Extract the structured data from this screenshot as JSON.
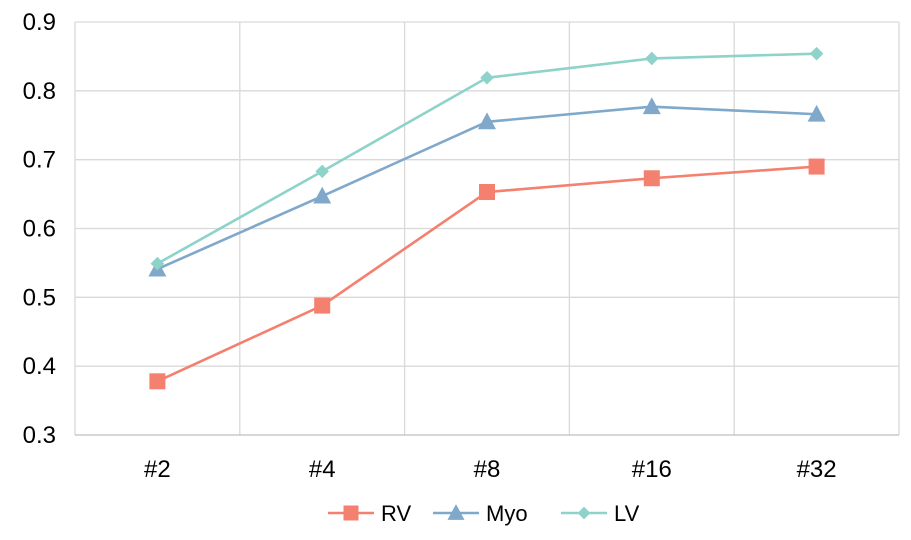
{
  "chart_data": {
    "type": "line",
    "categories": [
      "#2",
      "#4",
      "#8",
      "#16",
      "#32"
    ],
    "ylim": [
      0.3,
      0.9
    ],
    "yticks": [
      "0.3",
      "0.4",
      "0.5",
      "0.6",
      "0.7",
      "0.8",
      "0.9"
    ],
    "grid": true,
    "legend_position": "bottom",
    "series": [
      {
        "name": "RV",
        "values": [
          0.378,
          0.488,
          0.653,
          0.673,
          0.69
        ],
        "color": "#F4806F",
        "marker": "square"
      },
      {
        "name": "Myo",
        "values": [
          0.541,
          0.647,
          0.755,
          0.777,
          0.766
        ],
        "color": "#7FA8CB",
        "marker": "triangle"
      },
      {
        "name": "LV",
        "values": [
          0.549,
          0.683,
          0.819,
          0.847,
          0.854
        ],
        "color": "#8DD3C9",
        "marker": "diamond"
      }
    ]
  }
}
